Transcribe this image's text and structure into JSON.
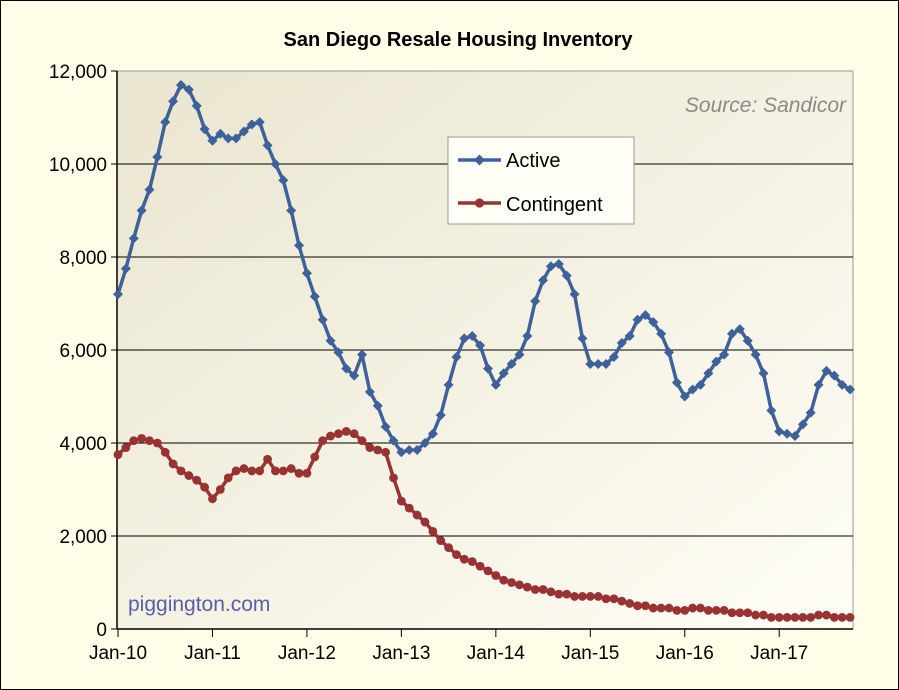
{
  "chart_data": {
    "type": "line",
    "title": "San Diego Resale Housing Inventory",
    "xlabel": "",
    "ylabel": "",
    "x_tick_labels": [
      "Jan-10",
      "Jan-11",
      "Jan-12",
      "Jan-13",
      "Jan-14",
      "Jan-15",
      "Jan-16",
      "Jan-17"
    ],
    "y_tick_labels": [
      "0",
      "2,000",
      "4,000",
      "6,000",
      "8,000",
      "10,000",
      "12,000"
    ],
    "y_ticks": [
      0,
      2000,
      4000,
      6000,
      8000,
      10000,
      12000
    ],
    "ylim": [
      0,
      12000
    ],
    "x_start": "2010-01",
    "grid": "horizontal",
    "legend_position": "upper-center",
    "annotations": {
      "source": "Source: Sandicor",
      "watermark": "piggington.com"
    },
    "series": [
      {
        "name": "Active",
        "color": "#3f619a",
        "marker": "diamond",
        "values": [
          7200,
          7750,
          8400,
          9000,
          9450,
          10150,
          10900,
          11350,
          11700,
          11600,
          11250,
          10750,
          10500,
          10650,
          10550,
          10550,
          10700,
          10850,
          10900,
          10400,
          10000,
          9650,
          9000,
          8250,
          7650,
          7150,
          6650,
          6200,
          5950,
          5600,
          5450,
          5900,
          5100,
          4800,
          4350,
          4050,
          3800,
          3850,
          3850,
          4000,
          4200,
          4600,
          5250,
          5850,
          6250,
          6300,
          6100,
          5600,
          5250,
          5500,
          5700,
          5900,
          6300,
          7050,
          7500,
          7800,
          7850,
          7600,
          7200,
          6250,
          5700,
          5700,
          5700,
          5850,
          6150,
          6300,
          6650,
          6750,
          6600,
          6350,
          5950,
          5300,
          5000,
          5150,
          5250,
          5500,
          5750,
          5900,
          6350,
          6450,
          6200,
          5900,
          5500,
          4700,
          4250,
          4200,
          4150,
          4400,
          4650,
          5250,
          5550,
          5450,
          5250,
          5150
        ]
      },
      {
        "name": "Contingent",
        "color": "#993333",
        "marker": "circle",
        "values": [
          3750,
          3900,
          4050,
          4100,
          4050,
          4000,
          3800,
          3550,
          3400,
          3300,
          3200,
          3050,
          2800,
          3000,
          3250,
          3400,
          3450,
          3400,
          3400,
          3650,
          3400,
          3400,
          3450,
          3350,
          3350,
          3700,
          4050,
          4150,
          4200,
          4250,
          4200,
          4050,
          3900,
          3850,
          3800,
          3250,
          2750,
          2600,
          2450,
          2300,
          2100,
          1900,
          1750,
          1600,
          1500,
          1450,
          1350,
          1250,
          1150,
          1050,
          1000,
          950,
          900,
          850,
          850,
          800,
          750,
          750,
          700,
          700,
          700,
          700,
          650,
          650,
          600,
          550,
          500,
          500,
          450,
          450,
          450,
          400,
          400,
          450,
          450,
          400,
          400,
          400,
          350,
          350,
          350,
          300,
          300,
          250,
          250,
          250,
          250,
          250,
          250,
          300,
          300,
          250,
          250,
          250
        ]
      }
    ]
  }
}
